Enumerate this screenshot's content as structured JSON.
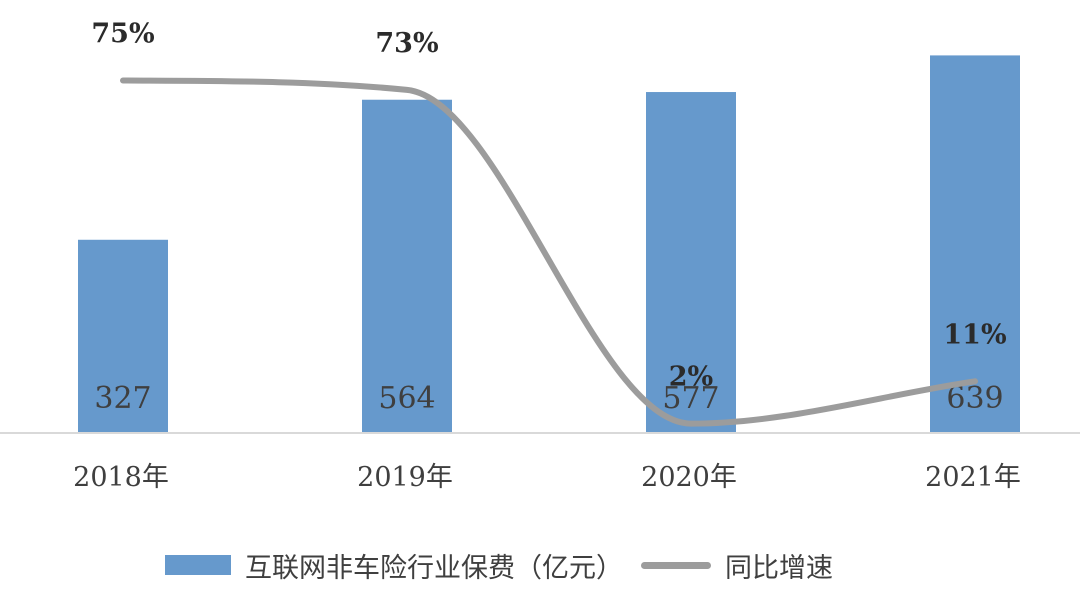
{
  "chart_data": {
    "type": "bar",
    "categories": [
      "2018年",
      "2019年",
      "2020年",
      "2021年"
    ],
    "series": [
      {
        "name": "互联网非车险行业保费（亿元）",
        "type": "bar",
        "values": [
          327,
          564,
          577,
          639
        ],
        "labels": [
          "327",
          "564",
          "577",
          "639"
        ],
        "color": "#6699cc"
      },
      {
        "name": "同比增速",
        "type": "line",
        "values": [
          75,
          73,
          2,
          11
        ],
        "labels": [
          "75%",
          "73%",
          "2%",
          "11%"
        ],
        "unit": "%",
        "color": "#9c9c9c"
      }
    ],
    "ylim": [
      0,
      660
    ],
    "ylim_secondary": [
      0,
      80
    ],
    "grid": false,
    "legend_position": "bottom"
  }
}
